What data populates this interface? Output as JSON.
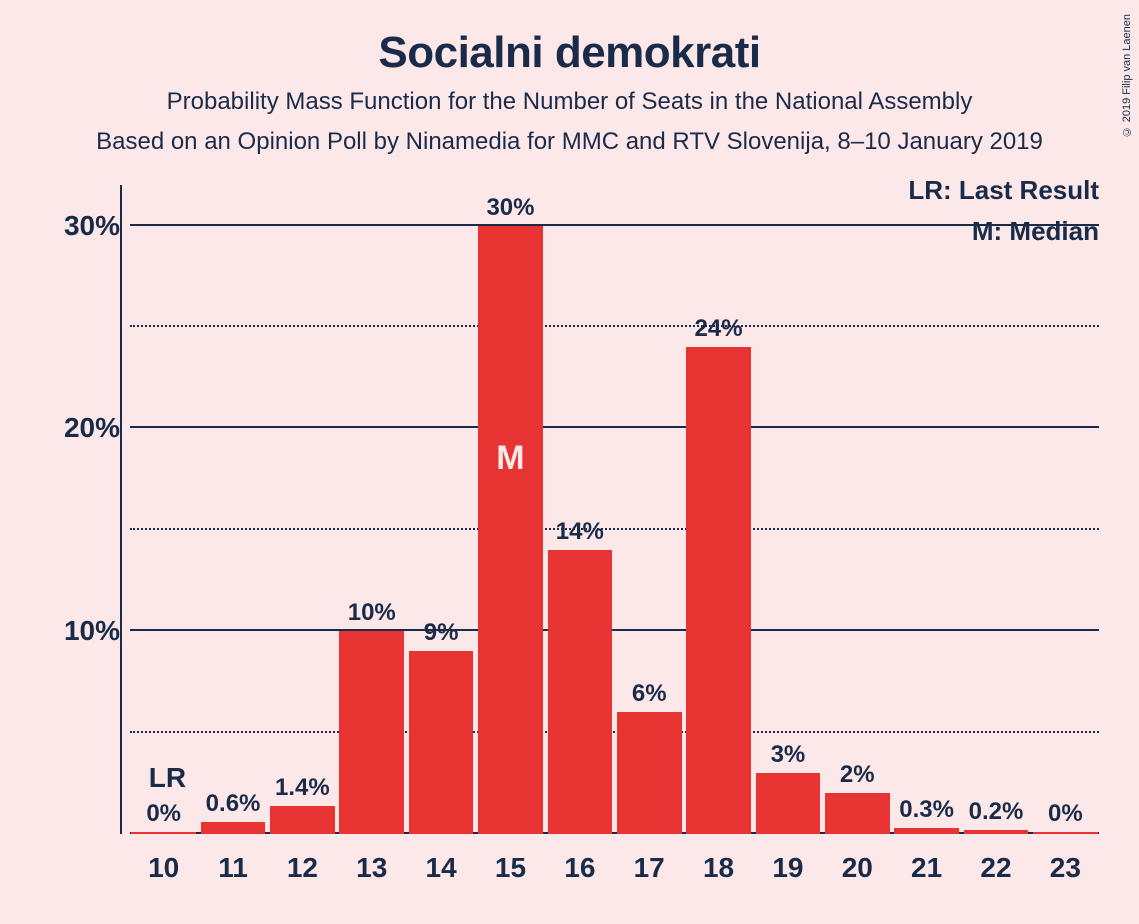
{
  "title": "Socialni demokrati",
  "subtitle1": "Probability Mass Function for the Number of Seats in the National Assembly",
  "subtitle2": "Based on an Opinion Poll by Ninamedia for MMC and RTV Slovenija, 8–10 January 2019",
  "copyright": "© 2019 Filip van Laenen",
  "legend": {
    "lr": "LR: Last Result",
    "median": "M: Median"
  },
  "chart": {
    "type": "bar",
    "bar_color": "#e73331",
    "background_color": "#fce8e8",
    "text_color": "#1a2b4a",
    "title_fontsize": 44,
    "subtitle_fontsize": 24,
    "axis_fontsize": 28,
    "barlabel_fontsize": 24,
    "ylim": [
      0,
      32
    ],
    "y_ticks_major": [
      10,
      20,
      30
    ],
    "y_ticks_minor": [
      5,
      15,
      25
    ],
    "y_labels": [
      "10%",
      "20%",
      "30%"
    ],
    "categories": [
      "10",
      "11",
      "12",
      "13",
      "14",
      "15",
      "16",
      "17",
      "18",
      "19",
      "20",
      "21",
      "22",
      "23"
    ],
    "values": [
      0,
      0.6,
      1.4,
      10,
      9,
      30,
      14,
      6,
      24,
      3,
      2,
      0.3,
      0.2,
      0
    ],
    "value_labels": [
      "0%",
      "0.6%",
      "1.4%",
      "10%",
      "9%",
      "30%",
      "14%",
      "6%",
      "24%",
      "3%",
      "2%",
      "0.3%",
      "0.2%",
      "0%"
    ],
    "median_index": 5,
    "median_marker": "M",
    "lr_index": 0,
    "lr_marker": "LR"
  }
}
